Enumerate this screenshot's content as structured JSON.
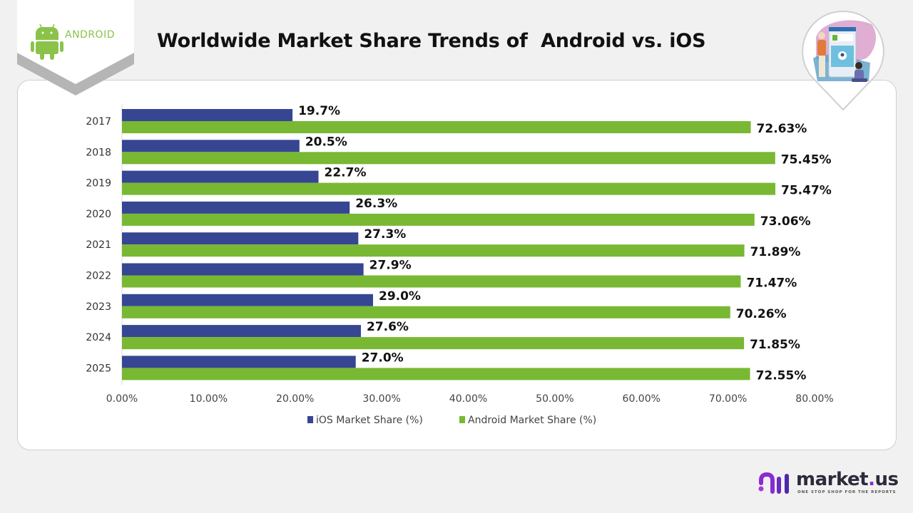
{
  "header": {
    "title": "Worldwide Market Share Trends of  Android vs. iOS",
    "logo_text": "ANDROID",
    "logo_icon": "android-robot-icon",
    "illustration": "people-with-phone-illustration"
  },
  "footer": {
    "brand_name_main": "market",
    "brand_name_dot": ".",
    "brand_name_end": "us",
    "brand_tagline": "ONE STOP SHOP FOR THE REPORTS",
    "brand_icon": "market-us-logo-icon"
  },
  "colors": {
    "ios": "#364693",
    "android": "#78b833",
    "background": "#f1f1f1",
    "card": "#ffffff",
    "android_logo": "#8bc34a",
    "brand_purple": "#8a2bd1"
  },
  "chart_data": {
    "type": "bar",
    "orientation": "horizontal",
    "title": "Worldwide Market Share Trends of  Android vs. iOS",
    "xlabel": "",
    "ylabel": "",
    "categories": [
      "2017",
      "2018",
      "2019",
      "2020",
      "2021",
      "2022",
      "2023",
      "2024",
      "2025"
    ],
    "series": [
      {
        "name": "iOS Market Share (%)",
        "values": [
          19.7,
          20.5,
          22.7,
          26.3,
          27.3,
          27.9,
          29.0,
          27.6,
          27.0
        ],
        "labels": [
          "19.7%",
          "20.5%",
          "22.7%",
          "26.3%",
          "27.3%",
          "27.9%",
          "29.0%",
          "27.6%",
          "27.0%"
        ]
      },
      {
        "name": "Android Market Share (%)",
        "values": [
          72.63,
          75.45,
          75.47,
          73.06,
          71.89,
          71.47,
          70.26,
          71.85,
          72.55
        ],
        "labels": [
          "72.63%",
          "75.45%",
          "75.47%",
          "73.06%",
          "71.89%",
          "71.47%",
          "70.26%",
          "71.85%",
          "72.55%"
        ]
      }
    ],
    "xlim": [
      0,
      80
    ],
    "xticks": [
      0,
      10,
      20,
      30,
      40,
      50,
      60,
      70,
      80
    ],
    "xtick_labels": [
      "0.00%",
      "10.00%",
      "20.00%",
      "30.00%",
      "40.00%",
      "50.00%",
      "60.00%",
      "70.00%",
      "80.00%"
    ],
    "grid": false,
    "legend": {
      "position": "bottom",
      "entries": [
        "iOS Market Share (%)",
        "Android Market Share (%)"
      ]
    }
  }
}
